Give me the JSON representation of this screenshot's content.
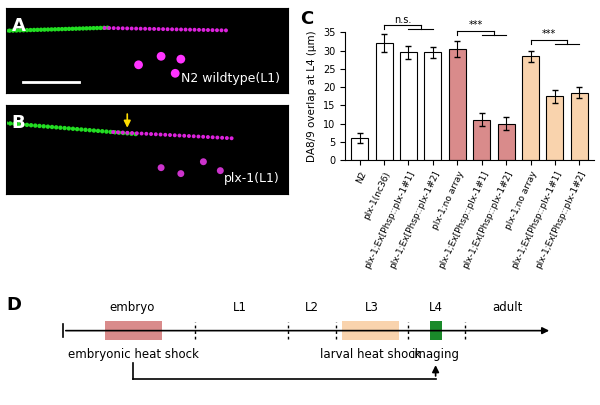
{
  "chart_data": {
    "type": "bar",
    "label": "C",
    "ylabel": "DA8/9 overlap at L4 (μm)",
    "categories": [
      "N2",
      "plx-1(nc36)",
      "plx-1;Ex[Phsp::plx-1#1]",
      "plx-1;Ex[Phsp::plx-1#2]",
      "plx-1;no array",
      "plx-1;Ex[Phsp::plx-1#1]",
      "plx-1;Ex[Phsp::plx-1#2]",
      "plx-1;no array",
      "plx-1;Ex[Phsp::plx-1#1]",
      "plx-1;Ex[Phsp::plx-1#2]"
    ],
    "values": [
      6,
      32,
      29.5,
      29.5,
      30.5,
      11,
      10,
      28.5,
      17.5,
      18.5
    ],
    "errors": [
      1.3,
      2.5,
      1.7,
      1.5,
      2.2,
      1.8,
      1.8,
      1.5,
      1.8,
      1.5
    ],
    "colors": [
      "#ffffff",
      "#ffffff",
      "#ffffff",
      "#ffffff",
      "#d98b8b",
      "#d98b8b",
      "#d98b8b",
      "#f9d3ad",
      "#f9d3ad",
      "#f9d3ad"
    ],
    "ylim": [
      0,
      35
    ],
    "yticks": [
      0,
      5,
      10,
      15,
      20,
      25,
      30,
      35
    ],
    "annotations": [
      "n.s.",
      "***",
      "***"
    ]
  },
  "images": [
    {
      "label": "A",
      "caption": "N2 wildtype(L1)"
    },
    {
      "label": "B",
      "caption": "plx-1(L1)"
    }
  ],
  "timeline": {
    "label": "D",
    "stages": [
      "embryo",
      "L1",
      "L2",
      "L3",
      "L4",
      "adult"
    ],
    "events": [
      {
        "text": "embryonic heat shock",
        "color": "#d98b8b"
      },
      {
        "text": "larval heat shock",
        "color": "#f9d3ad"
      },
      {
        "text": "imaging",
        "color": "#1a8a2a"
      }
    ]
  }
}
